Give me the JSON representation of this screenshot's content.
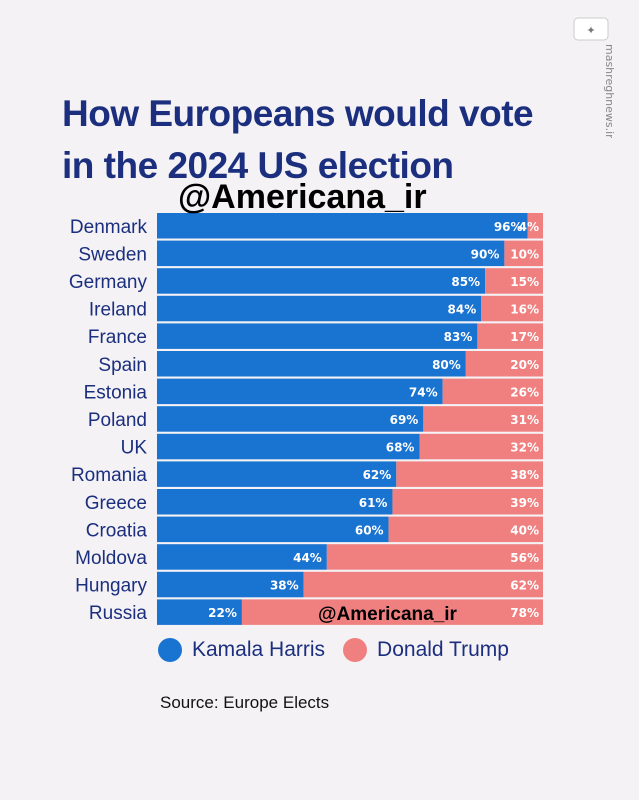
{
  "title_line1": "How Europeans would vote",
  "title_line2": "in the 2024 US election",
  "watermark_handle": "@Americana_ir",
  "watermark_site": "mashreghnews.ir",
  "source": "Source: Europe Elects",
  "colors": {
    "harris": "#1973d1",
    "trump": "#f08080",
    "title": "#1b2f7e"
  },
  "chart_data": {
    "type": "bar",
    "stacked": true,
    "orientation": "horizontal",
    "categories": [
      "Denmark",
      "Sweden",
      "Germany",
      "Ireland",
      "France",
      "Spain",
      "Estonia",
      "Poland",
      "UK",
      "Romania",
      "Greece",
      "Croatia",
      "Moldova",
      "Hungary",
      "Russia"
    ],
    "series": [
      {
        "name": "Kamala Harris",
        "values": [
          96,
          90,
          85,
          84,
          83,
          80,
          74,
          69,
          68,
          62,
          61,
          60,
          44,
          38,
          22
        ],
        "labels": [
          "96%",
          "90%",
          "85%",
          "84%",
          "83%",
          "80%",
          "74%",
          "69%",
          "68%",
          "62%",
          "61%",
          "60%",
          "44%",
          "38%",
          "22%"
        ]
      },
      {
        "name": "Donald Trump",
        "values": [
          4,
          10,
          15,
          16,
          17,
          20,
          26,
          31,
          32,
          38,
          39,
          40,
          56,
          62,
          78
        ],
        "labels": [
          "4%",
          "10%",
          "15%",
          "16%",
          "17%",
          "20%",
          "26%",
          "31%",
          "32%",
          "38%",
          "39%",
          "40%",
          "56%",
          "62%",
          "78%"
        ]
      }
    ],
    "xlim": [
      0,
      100
    ],
    "legend_position": "bottom"
  }
}
